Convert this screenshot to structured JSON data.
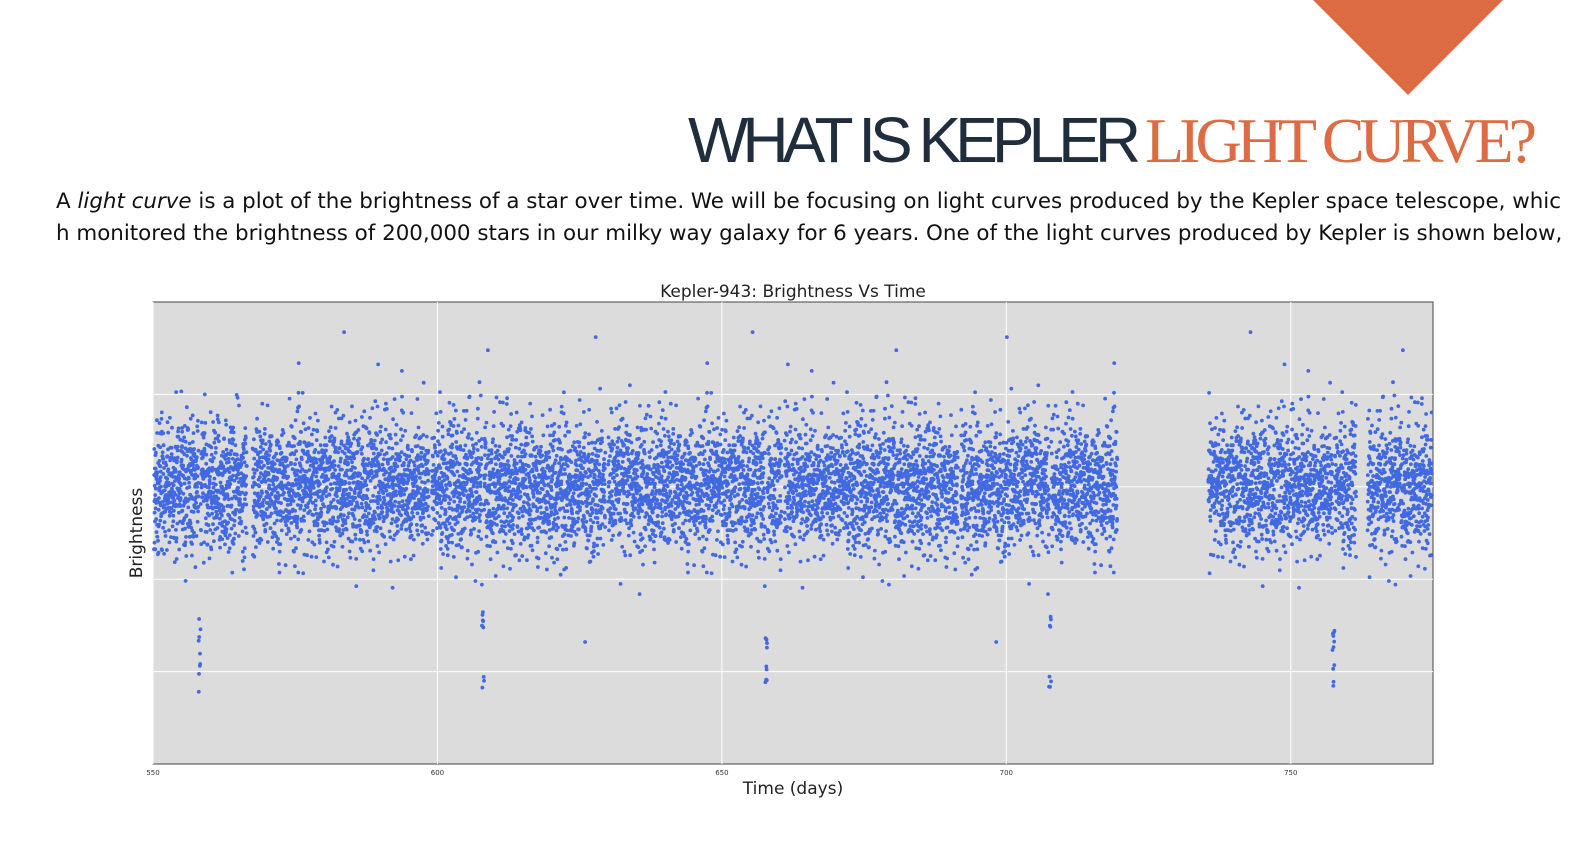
{
  "slide": {
    "title_dark": "WHAT IS KEPLER",
    "title_accent": "LIGHT CURVE?",
    "intro_prefix": "A ",
    "intro_em": "light curve",
    "intro_line1_rest": " is a plot of the brightness of a star over time. We will be focusing on light curves produced by the Kepler space telescope, whic",
    "intro_line2": "h monitored the brightness of 200,000 stars in our milky way galaxy for 6 years. One of the light curves produced by Kepler is shown below,"
  },
  "colors": {
    "accent": "#dd6b44",
    "title_dark": "#1f2d3d",
    "plot_bg": "#dcdcdc",
    "points": "#4169e1"
  },
  "chart_data": {
    "type": "scatter",
    "title": "Kepler-943: Brightness Vs Time",
    "xlabel": "Time (days)",
    "ylabel": "Brightness",
    "xlim": [
      550,
      775
    ],
    "x_ticks": [
      550,
      600,
      650,
      700,
      750
    ],
    "grid": true,
    "y_tick_labels_shown": false,
    "observation_segments": [
      [
        550,
        566.5
      ],
      [
        567.5,
        598.5
      ],
      [
        599,
        629.5
      ],
      [
        630,
        660.5
      ],
      [
        661,
        691.5
      ],
      [
        692,
        719.5
      ],
      [
        735.5,
        761.5
      ],
      [
        763.5,
        775
      ]
    ],
    "transit_times": [
      558.2,
      608.0,
      657.8,
      707.7,
      757.5
    ],
    "baseline_brightness": 1.0,
    "transit_depth": 0.0018,
    "scatter_sigma": 0.00035
  }
}
